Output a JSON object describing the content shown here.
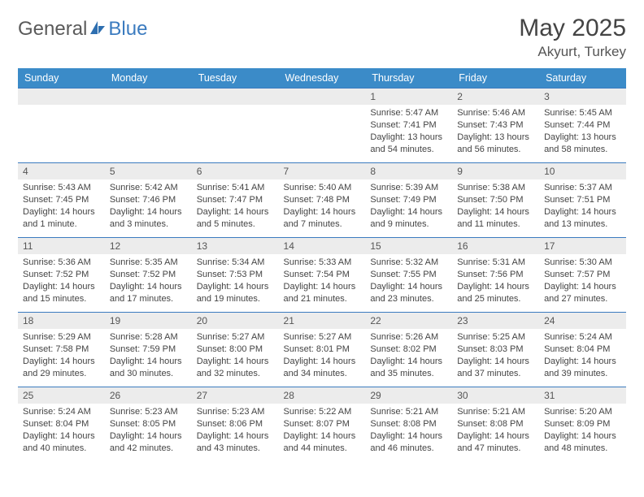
{
  "brand": {
    "text1": "General",
    "text2": "Blue"
  },
  "title": "May 2025",
  "location": "Akyurt, Turkey",
  "colors": {
    "header_bg": "#3b8bc8",
    "header_fg": "#ffffff",
    "accent": "#3b7bbf",
    "daynum_bg": "#ececec",
    "text": "#444444"
  },
  "typography": {
    "title_fontsize": 30,
    "location_fontsize": 17,
    "header_fontsize": 12.5,
    "daynum_fontsize": 12,
    "body_fontsize": 11,
    "font_family": "Arial"
  },
  "dayNames": [
    "Sunday",
    "Monday",
    "Tuesday",
    "Wednesday",
    "Thursday",
    "Friday",
    "Saturday"
  ],
  "weeks": [
    [
      null,
      null,
      null,
      null,
      {
        "n": "1",
        "sr": "5:47 AM",
        "ss": "7:41 PM",
        "dl": "13 hours and 54 minutes."
      },
      {
        "n": "2",
        "sr": "5:46 AM",
        "ss": "7:43 PM",
        "dl": "13 hours and 56 minutes."
      },
      {
        "n": "3",
        "sr": "5:45 AM",
        "ss": "7:44 PM",
        "dl": "13 hours and 58 minutes."
      }
    ],
    [
      {
        "n": "4",
        "sr": "5:43 AM",
        "ss": "7:45 PM",
        "dl": "14 hours and 1 minute."
      },
      {
        "n": "5",
        "sr": "5:42 AM",
        "ss": "7:46 PM",
        "dl": "14 hours and 3 minutes."
      },
      {
        "n": "6",
        "sr": "5:41 AM",
        "ss": "7:47 PM",
        "dl": "14 hours and 5 minutes."
      },
      {
        "n": "7",
        "sr": "5:40 AM",
        "ss": "7:48 PM",
        "dl": "14 hours and 7 minutes."
      },
      {
        "n": "8",
        "sr": "5:39 AM",
        "ss": "7:49 PM",
        "dl": "14 hours and 9 minutes."
      },
      {
        "n": "9",
        "sr": "5:38 AM",
        "ss": "7:50 PM",
        "dl": "14 hours and 11 minutes."
      },
      {
        "n": "10",
        "sr": "5:37 AM",
        "ss": "7:51 PM",
        "dl": "14 hours and 13 minutes."
      }
    ],
    [
      {
        "n": "11",
        "sr": "5:36 AM",
        "ss": "7:52 PM",
        "dl": "14 hours and 15 minutes."
      },
      {
        "n": "12",
        "sr": "5:35 AM",
        "ss": "7:52 PM",
        "dl": "14 hours and 17 minutes."
      },
      {
        "n": "13",
        "sr": "5:34 AM",
        "ss": "7:53 PM",
        "dl": "14 hours and 19 minutes."
      },
      {
        "n": "14",
        "sr": "5:33 AM",
        "ss": "7:54 PM",
        "dl": "14 hours and 21 minutes."
      },
      {
        "n": "15",
        "sr": "5:32 AM",
        "ss": "7:55 PM",
        "dl": "14 hours and 23 minutes."
      },
      {
        "n": "16",
        "sr": "5:31 AM",
        "ss": "7:56 PM",
        "dl": "14 hours and 25 minutes."
      },
      {
        "n": "17",
        "sr": "5:30 AM",
        "ss": "7:57 PM",
        "dl": "14 hours and 27 minutes."
      }
    ],
    [
      {
        "n": "18",
        "sr": "5:29 AM",
        "ss": "7:58 PM",
        "dl": "14 hours and 29 minutes."
      },
      {
        "n": "19",
        "sr": "5:28 AM",
        "ss": "7:59 PM",
        "dl": "14 hours and 30 minutes."
      },
      {
        "n": "20",
        "sr": "5:27 AM",
        "ss": "8:00 PM",
        "dl": "14 hours and 32 minutes."
      },
      {
        "n": "21",
        "sr": "5:27 AM",
        "ss": "8:01 PM",
        "dl": "14 hours and 34 minutes."
      },
      {
        "n": "22",
        "sr": "5:26 AM",
        "ss": "8:02 PM",
        "dl": "14 hours and 35 minutes."
      },
      {
        "n": "23",
        "sr": "5:25 AM",
        "ss": "8:03 PM",
        "dl": "14 hours and 37 minutes."
      },
      {
        "n": "24",
        "sr": "5:24 AM",
        "ss": "8:04 PM",
        "dl": "14 hours and 39 minutes."
      }
    ],
    [
      {
        "n": "25",
        "sr": "5:24 AM",
        "ss": "8:04 PM",
        "dl": "14 hours and 40 minutes."
      },
      {
        "n": "26",
        "sr": "5:23 AM",
        "ss": "8:05 PM",
        "dl": "14 hours and 42 minutes."
      },
      {
        "n": "27",
        "sr": "5:23 AM",
        "ss": "8:06 PM",
        "dl": "14 hours and 43 minutes."
      },
      {
        "n": "28",
        "sr": "5:22 AM",
        "ss": "8:07 PM",
        "dl": "14 hours and 44 minutes."
      },
      {
        "n": "29",
        "sr": "5:21 AM",
        "ss": "8:08 PM",
        "dl": "14 hours and 46 minutes."
      },
      {
        "n": "30",
        "sr": "5:21 AM",
        "ss": "8:08 PM",
        "dl": "14 hours and 47 minutes."
      },
      {
        "n": "31",
        "sr": "5:20 AM",
        "ss": "8:09 PM",
        "dl": "14 hours and 48 minutes."
      }
    ]
  ],
  "labels": {
    "sunrise": "Sunrise:",
    "sunset": "Sunset:",
    "daylight": "Daylight:"
  }
}
